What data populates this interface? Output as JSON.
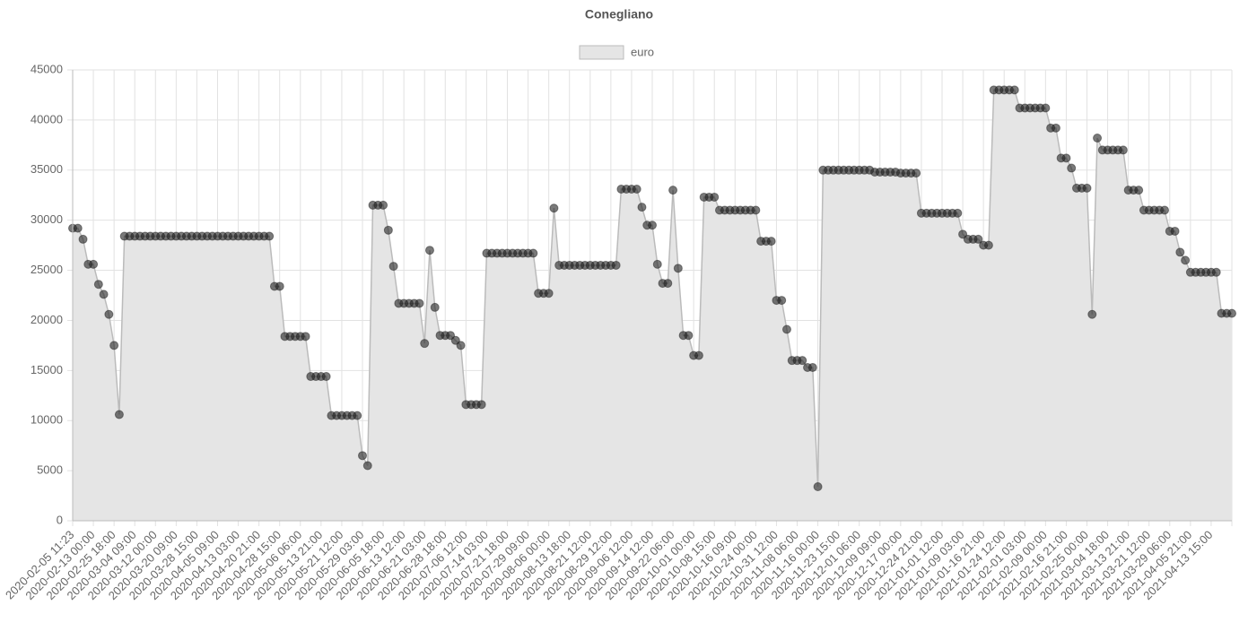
{
  "chart_data": {
    "type": "line",
    "title": "Conegliano",
    "categories": [
      "2020-02-05 11:23",
      null,
      null,
      null,
      "2020-02-13 00:00",
      null,
      null,
      null,
      "2020-02-25 18:00",
      null,
      null,
      null,
      "2020-03-04 09:00",
      null,
      null,
      null,
      "2020-03-12 00:00",
      null,
      null,
      null,
      "2020-03-20 09:00",
      null,
      null,
      null,
      "2020-03-28 15:00",
      null,
      null,
      null,
      "2020-04-05 09:00",
      null,
      null,
      null,
      "2020-04-13 03:00",
      null,
      null,
      null,
      "2020-04-20 21:00",
      null,
      null,
      null,
      "2020-04-28 15:00",
      null,
      null,
      null,
      "2020-05-06 06:00",
      null,
      null,
      null,
      "2020-05-13 21:00",
      null,
      null,
      null,
      "2020-05-21 12:00",
      null,
      null,
      null,
      "2020-05-29 03:00",
      null,
      null,
      null,
      "2020-06-05 18:00",
      null,
      null,
      null,
      "2020-06-13 12:00",
      null,
      null,
      null,
      "2020-06-21 03:00",
      null,
      null,
      null,
      "2020-06-28 18:00",
      null,
      null,
      null,
      "2020-07-06 12:00",
      null,
      null,
      null,
      "2020-07-14 03:00",
      null,
      null,
      null,
      "2020-07-21 18:00",
      null,
      null,
      null,
      "2020-07-29 09:00",
      null,
      null,
      null,
      "2020-08-06 00:00",
      null,
      null,
      null,
      "2020-08-13 18:00",
      null,
      null,
      null,
      "2020-08-21 12:00",
      null,
      null,
      null,
      "2020-08-29 12:00",
      null,
      null,
      null,
      "2020-09-06 12:00",
      null,
      null,
      null,
      "2020-09-14 12:00",
      null,
      null,
      null,
      "2020-09-22 06:00",
      null,
      null,
      null,
      "2020-10-01 00:00",
      null,
      null,
      null,
      "2020-10-08 15:00",
      null,
      null,
      null,
      "2020-10-16 09:00",
      null,
      null,
      null,
      "2020-10-24 00:00",
      null,
      null,
      null,
      "2020-10-31 12:00",
      null,
      null,
      null,
      "2020-11-08 06:00",
      null,
      null,
      null,
      "2020-11-16 00:00",
      null,
      null,
      null,
      "2020-11-23 15:00",
      null,
      null,
      null,
      "2020-12-01 06:00",
      null,
      null,
      null,
      "2020-12-09 09:00",
      null,
      null,
      null,
      "2020-12-17 00:00",
      null,
      null,
      null,
      "2020-12-24 21:00",
      null,
      null,
      null,
      "2021-01-01 12:00",
      null,
      null,
      null,
      "2021-01-09 03:00",
      null,
      null,
      null,
      "2021-01-16 21:00",
      null,
      null,
      null,
      "2021-01-24 12:00",
      null,
      null,
      null,
      "2021-02-01 03:00",
      null,
      null,
      null,
      "2021-02-09 00:00",
      null,
      null,
      null,
      "2021-02-16 21:00",
      null,
      null,
      null,
      "2021-02-25 00:00",
      null,
      null,
      null,
      "2021-03-04 18:00",
      null,
      null,
      null,
      "2021-03-13 21:00",
      null,
      null,
      null,
      "2021-03-21 12:00",
      null,
      null,
      null,
      "2021-03-29 06:00",
      null,
      null,
      null,
      "2021-04-05 21:00",
      null,
      null,
      null,
      "2021-04-13 15:00",
      null,
      null,
      null,
      null
    ],
    "series": [
      {
        "name": "euro",
        "color": "#e5e5e5",
        "border_color": "#bbbbbb",
        "point_color": "#222222",
        "values": [
          29200,
          29200,
          28100,
          25600,
          25600,
          23600,
          22600,
          20600,
          17500,
          10600,
          28400,
          28400,
          28400,
          28400,
          28400,
          28400,
          28400,
          28400,
          28400,
          28400,
          28400,
          28400,
          28400,
          28400,
          28400,
          28400,
          28400,
          28400,
          28400,
          28400,
          28400,
          28400,
          28400,
          28400,
          28400,
          28400,
          28400,
          28400,
          28400,
          23400,
          23400,
          18400,
          18400,
          18400,
          18400,
          18400,
          14400,
          14400,
          14400,
          14400,
          10500,
          10500,
          10500,
          10500,
          10500,
          10500,
          6500,
          5500,
          31500,
          31500,
          31500,
          29000,
          25400,
          21700,
          21700,
          21700,
          21700,
          21700,
          17700,
          27000,
          21300,
          18500,
          18500,
          18500,
          18000,
          17500,
          11600,
          11600,
          11600,
          11600,
          26700,
          26700,
          26700,
          26700,
          26700,
          26700,
          26700,
          26700,
          26700,
          26700,
          22700,
          22700,
          22700,
          31200,
          25500,
          25500,
          25500,
          25500,
          25500,
          25500,
          25500,
          25500,
          25500,
          25500,
          25500,
          25500,
          33100,
          33100,
          33100,
          33100,
          31300,
          29500,
          29500,
          25600,
          23700,
          23700,
          33000,
          25200,
          18500,
          18500,
          16500,
          16500,
          32300,
          32300,
          32300,
          31000,
          31000,
          31000,
          31000,
          31000,
          31000,
          31000,
          31000,
          27900,
          27900,
          27900,
          22000,
          22000,
          19100,
          16000,
          16000,
          16000,
          15300,
          15300,
          3400,
          35000,
          35000,
          35000,
          35000,
          35000,
          35000,
          35000,
          35000,
          35000,
          35000,
          34800,
          34800,
          34800,
          34800,
          34800,
          34700,
          34700,
          34700,
          34700,
          30700,
          30700,
          30700,
          30700,
          30700,
          30700,
          30700,
          30700,
          28600,
          28100,
          28100,
          28100,
          27500,
          27500,
          43000,
          43000,
          43000,
          43000,
          43000,
          41200,
          41200,
          41200,
          41200,
          41200,
          41200,
          39200,
          39200,
          36200,
          36200,
          35200,
          33200,
          33200,
          33200,
          20600,
          38200,
          37000,
          37000,
          37000,
          37000,
          37000,
          33000,
          33000,
          33000,
          31000,
          31000,
          31000,
          31000,
          31000,
          28900,
          28900,
          26800,
          26000,
          24800,
          24800,
          24800,
          24800,
          24800,
          24800,
          20700,
          20700,
          20700
        ]
      }
    ],
    "ylim": [
      0,
      45000
    ],
    "yticks": [
      0,
      5000,
      10000,
      15000,
      20000,
      25000,
      30000,
      35000,
      40000,
      45000
    ],
    "grid": true,
    "legend": "top"
  }
}
